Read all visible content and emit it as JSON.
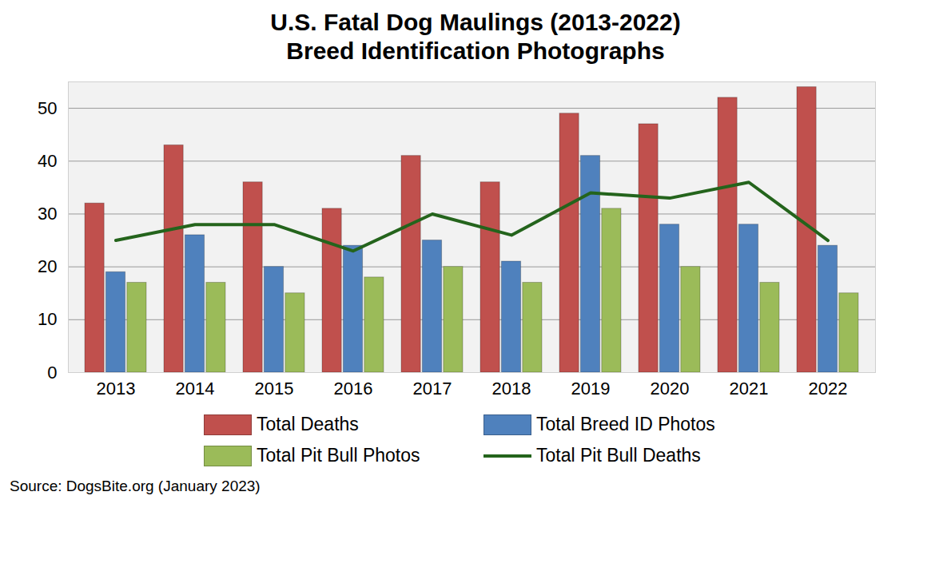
{
  "chart_data": {
    "type": "bar",
    "title": "U.S. Fatal Dog Maulings (2013-2022)",
    "subtitle": "Breed Identification Photographs",
    "caption": "Source: DogsBite.org (January 2023)",
    "categories": [
      "2013",
      "2014",
      "2015",
      "2016",
      "2017",
      "2018",
      "2019",
      "2020",
      "2021",
      "2022"
    ],
    "series": [
      {
        "name": "Total Deaths",
        "color": "#c0504d",
        "values": [
          32,
          43,
          36,
          31,
          41,
          36,
          49,
          47,
          52,
          54
        ]
      },
      {
        "name": "Total Breed ID Photos",
        "color": "#4f81bd",
        "values": [
          19,
          26,
          20,
          24,
          25,
          21,
          41,
          28,
          28,
          24
        ]
      },
      {
        "name": "Total Pit Bull Photos",
        "color": "#9bbb59",
        "values": [
          17,
          17,
          15,
          18,
          20,
          17,
          31,
          20,
          17,
          15
        ]
      },
      {
        "name": "Total Pit Bull Deaths",
        "color": "#24641c",
        "type": "line",
        "values": [
          25,
          28,
          28,
          23,
          30,
          26,
          34,
          33,
          36,
          25
        ]
      }
    ],
    "ylim": [
      0,
      55
    ],
    "yticks": [
      0,
      10,
      20,
      30,
      40,
      50
    ],
    "grid": true,
    "legend": "bottom"
  }
}
